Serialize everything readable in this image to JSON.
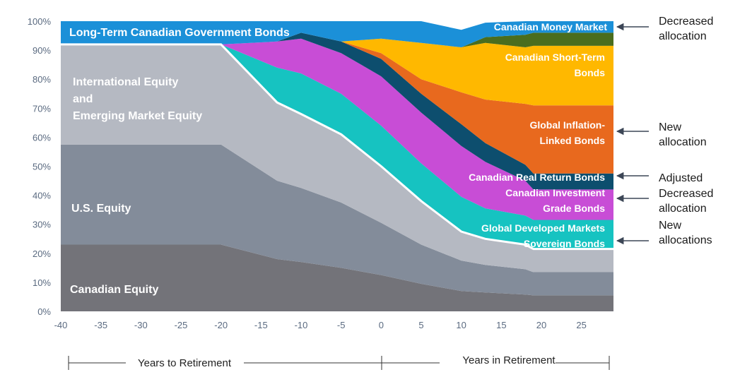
{
  "chart_data": {
    "type": "area",
    "stacked": true,
    "xlim": [
      -40,
      29
    ],
    "ylim": [
      0,
      100
    ],
    "x_ticks": [
      -40,
      -35,
      -30,
      -25,
      -20,
      -15,
      -10,
      -5,
      0,
      5,
      10,
      15,
      20,
      25
    ],
    "y_ticks": [
      0,
      10,
      20,
      30,
      40,
      50,
      60,
      70,
      80,
      90,
      100
    ],
    "y_tick_labels": [
      "0%",
      "10%",
      "20%",
      "30%",
      "40%",
      "50%",
      "60%",
      "70%",
      "80%",
      "90%",
      "100%"
    ],
    "x": [
      -40,
      -20,
      -13,
      -10,
      -5,
      0,
      5,
      10,
      13,
      18,
      19,
      29
    ],
    "series": [
      {
        "name": "Canadian Equity",
        "color": "#737379",
        "values": [
          23,
          23,
          18,
          17,
          15,
          12.5,
          9.5,
          7,
          6.5,
          5.8,
          5.5,
          5.5
        ]
      },
      {
        "name": "U.S. Equity",
        "color": "#838c9a",
        "values": [
          34.5,
          34.5,
          27,
          25.5,
          22.5,
          18,
          13.5,
          10.5,
          9.5,
          8.7,
          8,
          8
        ]
      },
      {
        "name": "International Equity\nand\nEmerging Market Equity",
        "color": "#b5b9c2",
        "values": [
          34.5,
          34.5,
          27,
          25.5,
          23.5,
          19.5,
          15,
          10,
          9,
          8.5,
          8,
          8
        ]
      },
      {
        "name": "Global Developed Markets\nSovereign Bonds",
        "color": "#16c3c1",
        "values": [
          0,
          0,
          12,
          14,
          14,
          14,
          13,
          12,
          10.5,
          10,
          10,
          10
        ]
      },
      {
        "name": "Canadian Investment\nGrade Bonds",
        "color": "#c84dd6",
        "values": [
          0,
          0,
          9,
          12,
          14,
          17,
          17.5,
          17.5,
          16,
          12,
          10.5,
          10.5
        ]
      },
      {
        "name": "Canadian Real Return Bonds",
        "color": "#0d4e6e",
        "values": [
          0,
          0,
          0,
          2,
          4,
          6,
          6.5,
          7.5,
          6.5,
          5.5,
          5.5,
          5.5
        ]
      },
      {
        "name": "Global Inflation-\nLinked Bonds",
        "color": "#e8691e",
        "values": [
          0,
          0,
          0,
          0,
          0,
          2,
          5,
          11,
          15,
          21,
          23.5,
          23.5
        ]
      },
      {
        "name": "Canadian Short-Term\nBonds",
        "color": "#ffb800",
        "values": [
          0,
          0,
          0,
          0,
          0,
          5,
          12.5,
          15.5,
          19.5,
          19.5,
          20.5,
          20.5
        ]
      },
      {
        "name": "Canadian Money Market",
        "color": "#4a6d1e",
        "values": [
          0,
          0,
          0,
          0,
          0,
          0,
          0,
          0,
          2,
          4.3,
          4.5,
          4.5
        ]
      },
      {
        "name": "Long-Term Canadian Government Bonds",
        "color": "#1b90d8",
        "values": [
          8,
          8,
          7,
          4,
          7,
          6,
          7.5,
          6,
          5,
          5,
          4,
          4
        ]
      }
    ],
    "annotations": [
      {
        "line1": "Decreased",
        "line2": "allocation"
      },
      {
        "line1": "New",
        "line2": "allocation"
      },
      {
        "line1": "Adjusted",
        "line2": ""
      },
      {
        "line1": "Decreased",
        "line2": "allocation"
      },
      {
        "line1": "New",
        "line2": "allocations"
      }
    ],
    "timeline": {
      "before": "Years to Retirement",
      "after": "Years in Retirement"
    }
  }
}
